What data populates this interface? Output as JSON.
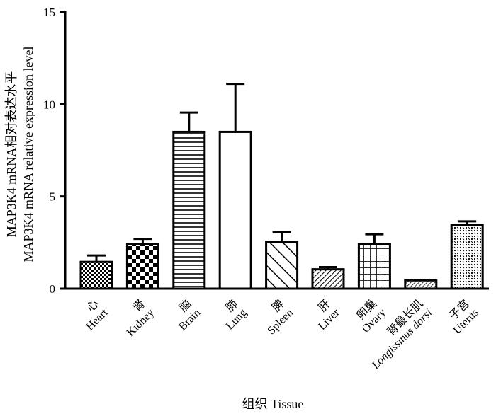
{
  "chart_data": {
    "type": "bar",
    "ylim": [
      0,
      15
    ],
    "yticks": [
      "0",
      "5",
      "10",
      "15"
    ],
    "ylabel_line1": "MAP3K4 mRNA相对表达水平",
    "ylabel_line2": "MAP3K4 mRNA relative expression level",
    "xlabel": "组织 Tissue",
    "grid": false,
    "categories": [
      {
        "cn": "心",
        "en": "Heart",
        "value": 1.45,
        "error": 0.35,
        "pattern": "checker-small"
      },
      {
        "cn": "肾",
        "en": "Kidney",
        "value": 2.4,
        "error": 0.3,
        "pattern": "checker-large"
      },
      {
        "cn": "脑",
        "en": "Brain",
        "value": 8.5,
        "error": 1.05,
        "pattern": "hlines"
      },
      {
        "cn": "肺",
        "en": "Lung",
        "value": 8.5,
        "error": 2.6,
        "pattern": "none"
      },
      {
        "cn": "脾",
        "en": "Spleen",
        "value": 2.55,
        "error": 0.5,
        "pattern": "diag-wide"
      },
      {
        "cn": "肝",
        "en": "Liver",
        "value": 1.05,
        "error": 0.12,
        "pattern": "diag-dense"
      },
      {
        "cn": "卵巢",
        "en": "Ovary",
        "value": 2.4,
        "error": 0.55,
        "pattern": "grid"
      },
      {
        "cn": "背最长肌",
        "en": "Longissmus dorsi",
        "value": 0.45,
        "error": 0.0,
        "pattern": "diag-fine"
      },
      {
        "cn": "子宫",
        "en": "Uterus",
        "value": 3.45,
        "error": 0.2,
        "pattern": "dots"
      }
    ]
  }
}
